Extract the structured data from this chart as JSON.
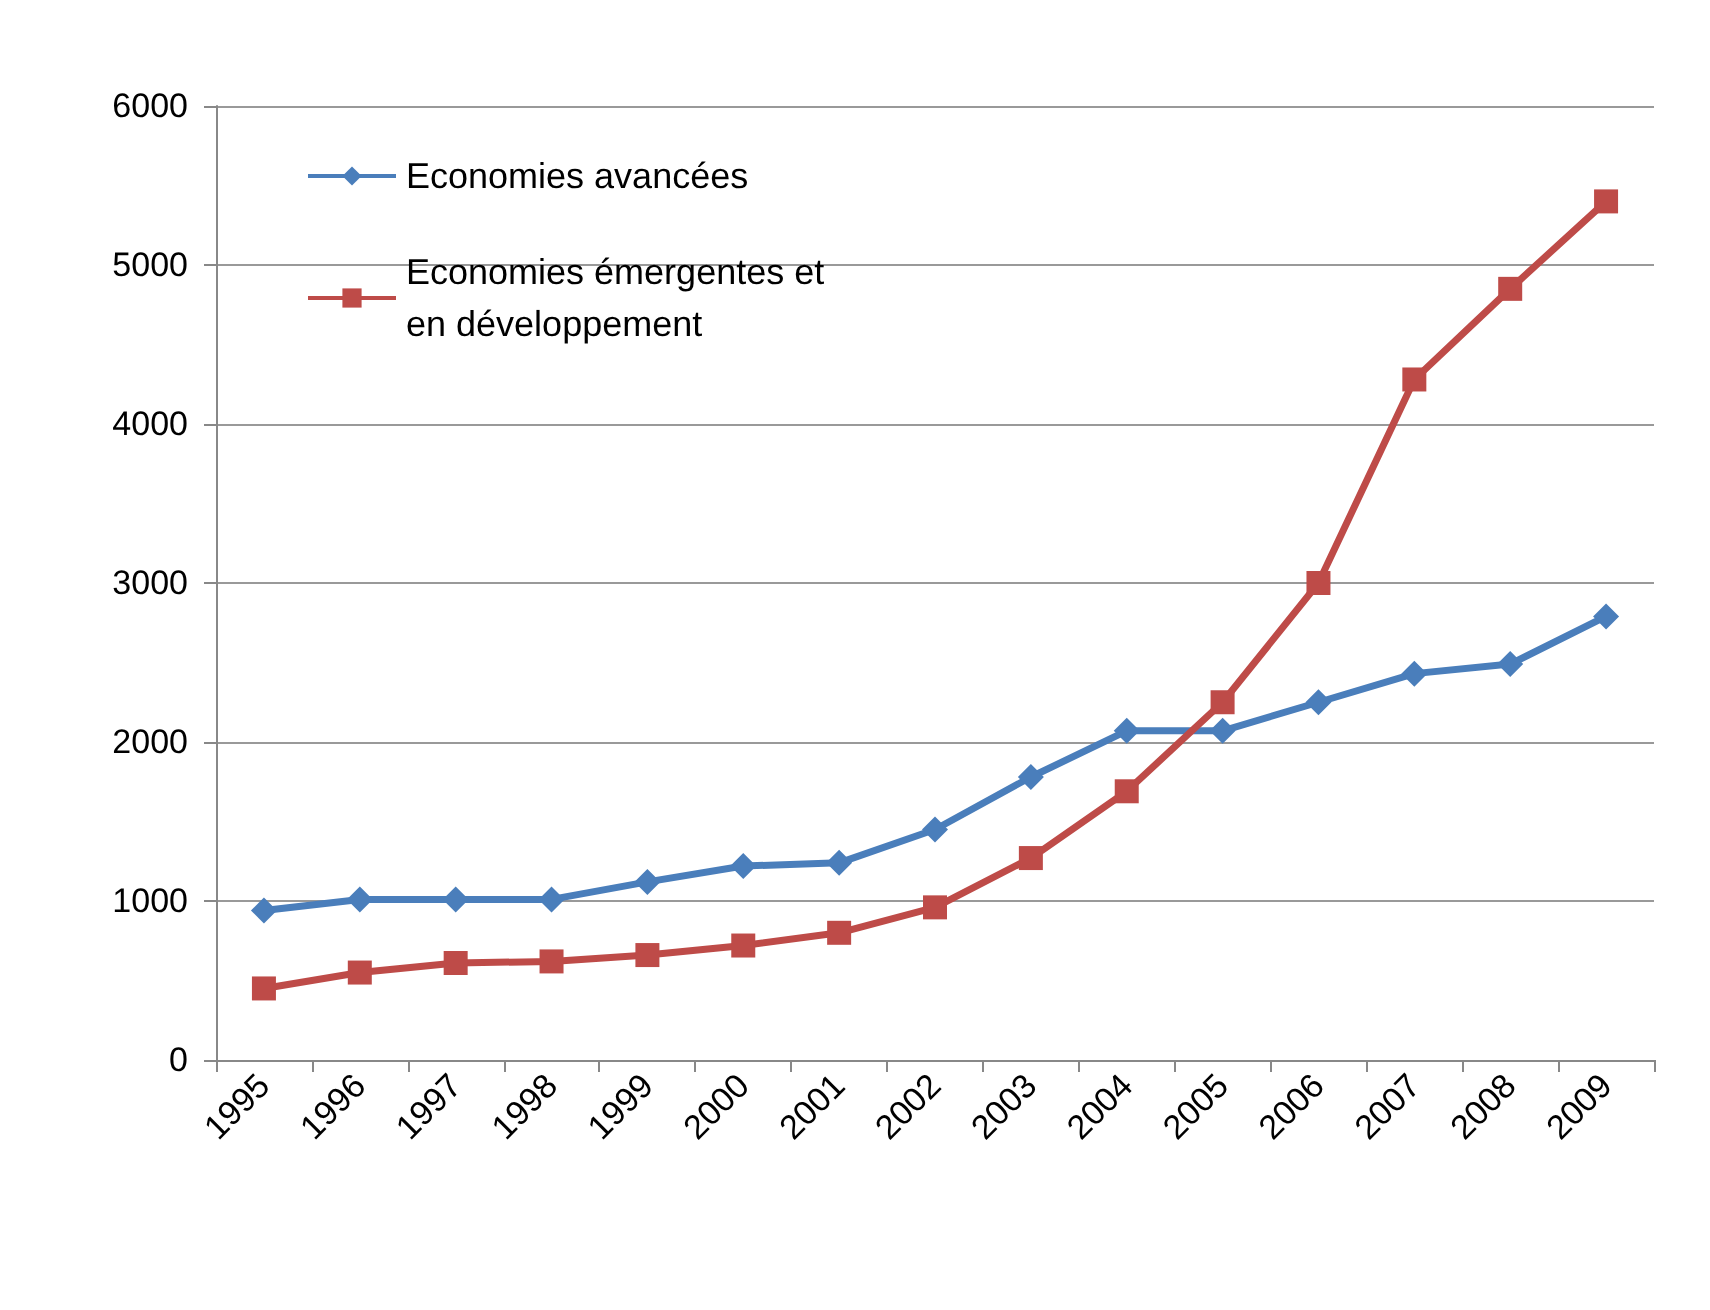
{
  "chart_data": {
    "type": "line",
    "categories": [
      "1995",
      "1996",
      "1997",
      "1998",
      "1999",
      "2000",
      "2001",
      "2002",
      "2003",
      "2004",
      "2005",
      "2006",
      "2007",
      "2008",
      "2009"
    ],
    "series": [
      {
        "name": "Economies avancées",
        "color": "#4a7ebb",
        "marker": "diamond",
        "values": [
          940,
          1010,
          1010,
          1010,
          1120,
          1220,
          1240,
          1450,
          1780,
          2070,
          2070,
          2250,
          2430,
          2490,
          2790
        ]
      },
      {
        "name": "Economies émergentes et en développement",
        "color": "#be4b48",
        "marker": "square",
        "values": [
          450,
          550,
          610,
          620,
          660,
          720,
          800,
          960,
          1270,
          1690,
          2250,
          3000,
          4280,
          4850,
          5400
        ]
      }
    ],
    "ylim": [
      0,
      6000
    ],
    "yticks": [
      0,
      1000,
      2000,
      3000,
      4000,
      5000,
      6000
    ],
    "grid": "y",
    "legend": "top left"
  }
}
